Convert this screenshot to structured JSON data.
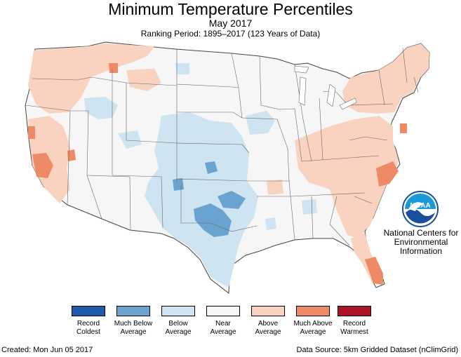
{
  "header": {
    "title": "Minimum Temperature Percentiles",
    "subtitle": "May 2017",
    "ranking": "Ranking Period: 1895–2017 (123 Years of Data)"
  },
  "legend": [
    {
      "label": "Record Coldest",
      "color": "#1f5ba8"
    },
    {
      "label": "Much Below Average",
      "color": "#6aa3cf"
    },
    {
      "label": "Below Average",
      "color": "#cfe4f1"
    },
    {
      "label": "Near Average",
      "color": "#f6f6f6"
    },
    {
      "label": "Above Average",
      "color": "#f9d3c0"
    },
    {
      "label": "Much Above Average",
      "color": "#ee8a65"
    },
    {
      "label": "Record Warmest",
      "color": "#ad1428"
    }
  ],
  "agency": "National Centers for Environmental Information",
  "logo_text": "NOAA",
  "footer": {
    "created": "Created: Mon Jun 05 2017",
    "source": "Data Source: 5km Gridded Dataset (nClimGrid)"
  }
}
